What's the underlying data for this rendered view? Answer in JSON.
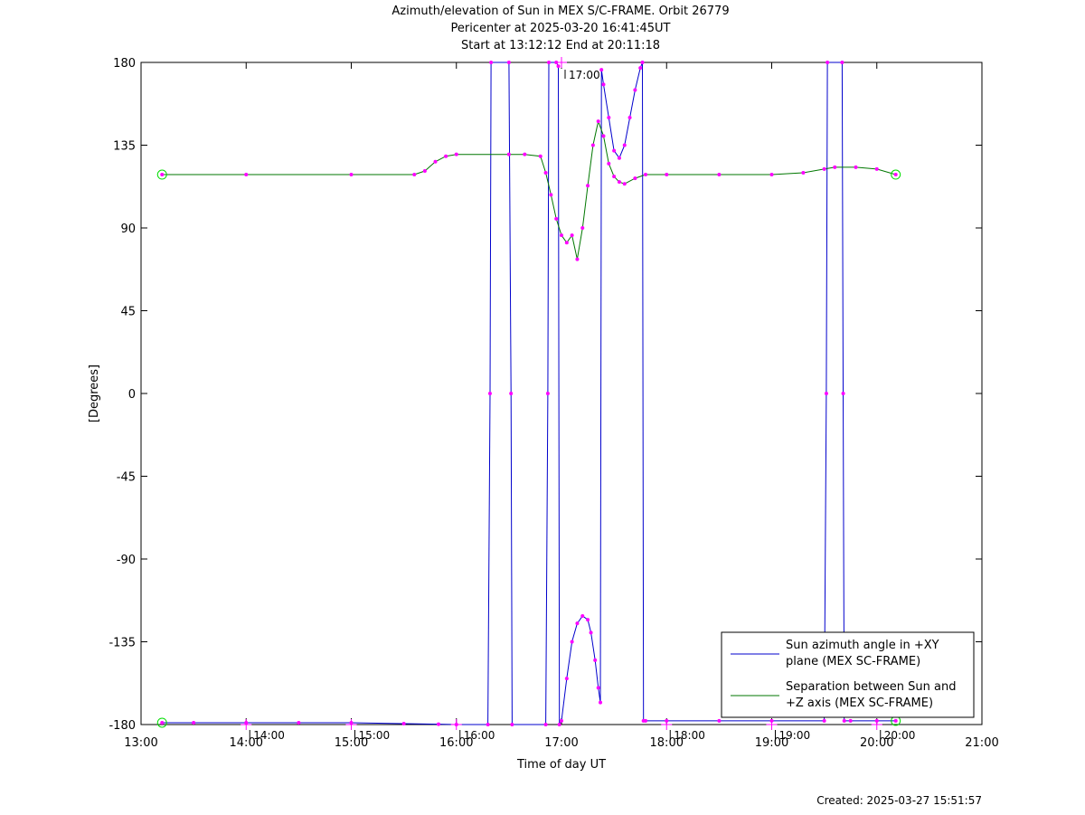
{
  "header": {
    "title_line1": "Azimuth/elevation of Sun in MEX S/C-FRAME.  Orbit 26779",
    "title_line2": "Pericenter at 2025-03-20 16:41:45UT",
    "title_line3": "Start at 13:12:12 End at 20:11:18"
  },
  "footer": {
    "created": "Created: 2025-03-27 15:51:57"
  },
  "chart_data": {
    "type": "line",
    "xlabel": "Time of day UT",
    "ylabel": "[Degrees]",
    "xlim": [
      13.0,
      21.0
    ],
    "ylim": [
      -180,
      180
    ],
    "x_ticks": [
      13,
      14,
      15,
      16,
      17,
      18,
      19,
      20,
      21
    ],
    "x_tick_labels": [
      "13:00",
      "14:00",
      "15:00",
      "16:00",
      "17:00",
      "18:00",
      "19:00",
      "20:00",
      "21:00"
    ],
    "y_ticks": [
      180,
      135,
      90,
      45,
      0,
      -45,
      -90,
      -135,
      -180
    ],
    "y_tick_labels": [
      "180",
      "135",
      "90",
      "45",
      "0",
      "-45",
      "-90",
      "-135",
      "-180"
    ],
    "hour_marks": [
      {
        "x": 14.0,
        "label": "14:00",
        "y": -180
      },
      {
        "x": 15.0,
        "label": "15:00",
        "y": -180
      },
      {
        "x": 16.0,
        "label": "16:00",
        "y": -180
      },
      {
        "x": 17.0,
        "label": "17:00",
        "y": 180
      },
      {
        "x": 18.0,
        "label": "18:00",
        "y": -180
      },
      {
        "x": 19.0,
        "label": "19:00",
        "y": -180
      },
      {
        "x": 20.0,
        "label": "20:00",
        "y": -180
      }
    ],
    "legend_position": "bottom-right",
    "grid": false,
    "colors": {
      "azimuth": "#0000cc",
      "separation": "#007700",
      "markers": "#ff00ff",
      "endpoints": "#00dd00"
    },
    "series": [
      {
        "name": "Sun azimuth angle in +XY plane (MEX SC-FRAME)",
        "legend_line1": "Sun azimuth angle in +XY",
        "legend_line2": "plane (MEX SC-FRAME)",
        "color": "#0000cc",
        "x": [
          13.2,
          13.5,
          14.0,
          14.5,
          15.0,
          15.5,
          15.83,
          16.0,
          16.3,
          16.32,
          16.33,
          16.5,
          16.52,
          16.53,
          16.85,
          16.87,
          16.88,
          16.95,
          16.97,
          16.98,
          17.0,
          17.05,
          17.1,
          17.15,
          17.2,
          17.25,
          17.28,
          17.32,
          17.35,
          17.37,
          17.38,
          17.4,
          17.45,
          17.5,
          17.55,
          17.6,
          17.65,
          17.7,
          17.75,
          17.77,
          17.78,
          17.8,
          18.0,
          18.5,
          19.0,
          19.5,
          19.52,
          19.53,
          19.67,
          19.68,
          19.69,
          19.75,
          20.0,
          20.18
        ],
        "y": [
          -179,
          -179,
          -179,
          -179,
          -179,
          -179.5,
          -179.8,
          -180,
          -180,
          0,
          180,
          180,
          0,
          -180,
          -180,
          0,
          180,
          180,
          178,
          -180,
          -178,
          -155,
          -135,
          -125,
          -121,
          -123,
          -130,
          -145,
          -160,
          -168,
          176,
          168,
          150,
          132,
          128,
          135,
          150,
          165,
          177,
          180,
          -178,
          -178,
          -178,
          -178,
          -178,
          -178,
          0,
          180,
          180,
          0,
          -178,
          -178,
          -178,
          -178
        ]
      },
      {
        "name": "Separation between Sun and +Z axis (MEX SC-FRAME)",
        "legend_line1": "Separation between Sun and",
        "legend_line2": "+Z axis (MEX SC-FRAME)",
        "color": "#007700",
        "x": [
          13.2,
          14.0,
          15.0,
          15.6,
          15.7,
          15.8,
          15.9,
          16.0,
          16.5,
          16.65,
          16.8,
          16.85,
          16.9,
          16.95,
          17.0,
          17.05,
          17.1,
          17.15,
          17.2,
          17.25,
          17.3,
          17.35,
          17.4,
          17.45,
          17.5,
          17.55,
          17.6,
          17.7,
          17.8,
          18.0,
          18.5,
          19.0,
          19.3,
          19.5,
          19.6,
          19.8,
          20.0,
          20.18
        ],
        "y": [
          119,
          119,
          119,
          119,
          121,
          126,
          129,
          130,
          130,
          130,
          129,
          120,
          108,
          95,
          86,
          82,
          86,
          73,
          90,
          113,
          135,
          148,
          140,
          125,
          118,
          115,
          114,
          117,
          119,
          119,
          119,
          119,
          120,
          122,
          123,
          123,
          122,
          119
        ]
      }
    ]
  }
}
